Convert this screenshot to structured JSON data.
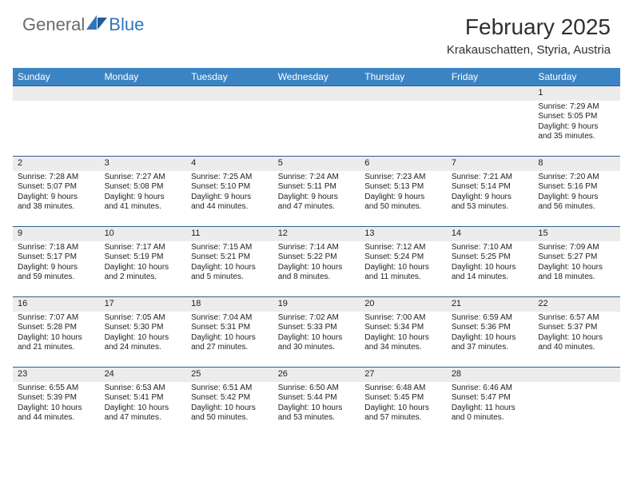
{
  "brand": {
    "part1": "General",
    "part2": "Blue"
  },
  "title": "February 2025",
  "subtitle": "Krakauschatten, Styria, Austria",
  "colors": {
    "header_bg": "#3b84c4",
    "header_text": "#ffffff",
    "daynum_bg": "#ececec",
    "cell_border": "#2f5f8f",
    "logo_gray": "#6b6b6b",
    "logo_blue": "#2f75bd"
  },
  "weekdays": [
    "Sunday",
    "Monday",
    "Tuesday",
    "Wednesday",
    "Thursday",
    "Friday",
    "Saturday"
  ],
  "weeks": [
    [
      {
        "blank": true
      },
      {
        "blank": true
      },
      {
        "blank": true
      },
      {
        "blank": true
      },
      {
        "blank": true
      },
      {
        "blank": true
      },
      {
        "day": "1",
        "sunrise": "Sunrise: 7:29 AM",
        "sunset": "Sunset: 5:05 PM",
        "day1": "Daylight: 9 hours",
        "day2": "and 35 minutes."
      }
    ],
    [
      {
        "day": "2",
        "sunrise": "Sunrise: 7:28 AM",
        "sunset": "Sunset: 5:07 PM",
        "day1": "Daylight: 9 hours",
        "day2": "and 38 minutes."
      },
      {
        "day": "3",
        "sunrise": "Sunrise: 7:27 AM",
        "sunset": "Sunset: 5:08 PM",
        "day1": "Daylight: 9 hours",
        "day2": "and 41 minutes."
      },
      {
        "day": "4",
        "sunrise": "Sunrise: 7:25 AM",
        "sunset": "Sunset: 5:10 PM",
        "day1": "Daylight: 9 hours",
        "day2": "and 44 minutes."
      },
      {
        "day": "5",
        "sunrise": "Sunrise: 7:24 AM",
        "sunset": "Sunset: 5:11 PM",
        "day1": "Daylight: 9 hours",
        "day2": "and 47 minutes."
      },
      {
        "day": "6",
        "sunrise": "Sunrise: 7:23 AM",
        "sunset": "Sunset: 5:13 PM",
        "day1": "Daylight: 9 hours",
        "day2": "and 50 minutes."
      },
      {
        "day": "7",
        "sunrise": "Sunrise: 7:21 AM",
        "sunset": "Sunset: 5:14 PM",
        "day1": "Daylight: 9 hours",
        "day2": "and 53 minutes."
      },
      {
        "day": "8",
        "sunrise": "Sunrise: 7:20 AM",
        "sunset": "Sunset: 5:16 PM",
        "day1": "Daylight: 9 hours",
        "day2": "and 56 minutes."
      }
    ],
    [
      {
        "day": "9",
        "sunrise": "Sunrise: 7:18 AM",
        "sunset": "Sunset: 5:17 PM",
        "day1": "Daylight: 9 hours",
        "day2": "and 59 minutes."
      },
      {
        "day": "10",
        "sunrise": "Sunrise: 7:17 AM",
        "sunset": "Sunset: 5:19 PM",
        "day1": "Daylight: 10 hours",
        "day2": "and 2 minutes."
      },
      {
        "day": "11",
        "sunrise": "Sunrise: 7:15 AM",
        "sunset": "Sunset: 5:21 PM",
        "day1": "Daylight: 10 hours",
        "day2": "and 5 minutes."
      },
      {
        "day": "12",
        "sunrise": "Sunrise: 7:14 AM",
        "sunset": "Sunset: 5:22 PM",
        "day1": "Daylight: 10 hours",
        "day2": "and 8 minutes."
      },
      {
        "day": "13",
        "sunrise": "Sunrise: 7:12 AM",
        "sunset": "Sunset: 5:24 PM",
        "day1": "Daylight: 10 hours",
        "day2": "and 11 minutes."
      },
      {
        "day": "14",
        "sunrise": "Sunrise: 7:10 AM",
        "sunset": "Sunset: 5:25 PM",
        "day1": "Daylight: 10 hours",
        "day2": "and 14 minutes."
      },
      {
        "day": "15",
        "sunrise": "Sunrise: 7:09 AM",
        "sunset": "Sunset: 5:27 PM",
        "day1": "Daylight: 10 hours",
        "day2": "and 18 minutes."
      }
    ],
    [
      {
        "day": "16",
        "sunrise": "Sunrise: 7:07 AM",
        "sunset": "Sunset: 5:28 PM",
        "day1": "Daylight: 10 hours",
        "day2": "and 21 minutes."
      },
      {
        "day": "17",
        "sunrise": "Sunrise: 7:05 AM",
        "sunset": "Sunset: 5:30 PM",
        "day1": "Daylight: 10 hours",
        "day2": "and 24 minutes."
      },
      {
        "day": "18",
        "sunrise": "Sunrise: 7:04 AM",
        "sunset": "Sunset: 5:31 PM",
        "day1": "Daylight: 10 hours",
        "day2": "and 27 minutes."
      },
      {
        "day": "19",
        "sunrise": "Sunrise: 7:02 AM",
        "sunset": "Sunset: 5:33 PM",
        "day1": "Daylight: 10 hours",
        "day2": "and 30 minutes."
      },
      {
        "day": "20",
        "sunrise": "Sunrise: 7:00 AM",
        "sunset": "Sunset: 5:34 PM",
        "day1": "Daylight: 10 hours",
        "day2": "and 34 minutes."
      },
      {
        "day": "21",
        "sunrise": "Sunrise: 6:59 AM",
        "sunset": "Sunset: 5:36 PM",
        "day1": "Daylight: 10 hours",
        "day2": "and 37 minutes."
      },
      {
        "day": "22",
        "sunrise": "Sunrise: 6:57 AM",
        "sunset": "Sunset: 5:37 PM",
        "day1": "Daylight: 10 hours",
        "day2": "and 40 minutes."
      }
    ],
    [
      {
        "day": "23",
        "sunrise": "Sunrise: 6:55 AM",
        "sunset": "Sunset: 5:39 PM",
        "day1": "Daylight: 10 hours",
        "day2": "and 44 minutes."
      },
      {
        "day": "24",
        "sunrise": "Sunrise: 6:53 AM",
        "sunset": "Sunset: 5:41 PM",
        "day1": "Daylight: 10 hours",
        "day2": "and 47 minutes."
      },
      {
        "day": "25",
        "sunrise": "Sunrise: 6:51 AM",
        "sunset": "Sunset: 5:42 PM",
        "day1": "Daylight: 10 hours",
        "day2": "and 50 minutes."
      },
      {
        "day": "26",
        "sunrise": "Sunrise: 6:50 AM",
        "sunset": "Sunset: 5:44 PM",
        "day1": "Daylight: 10 hours",
        "day2": "and 53 minutes."
      },
      {
        "day": "27",
        "sunrise": "Sunrise: 6:48 AM",
        "sunset": "Sunset: 5:45 PM",
        "day1": "Daylight: 10 hours",
        "day2": "and 57 minutes."
      },
      {
        "day": "28",
        "sunrise": "Sunrise: 6:46 AM",
        "sunset": "Sunset: 5:47 PM",
        "day1": "Daylight: 11 hours",
        "day2": "and 0 minutes."
      },
      {
        "blank": true
      }
    ]
  ]
}
